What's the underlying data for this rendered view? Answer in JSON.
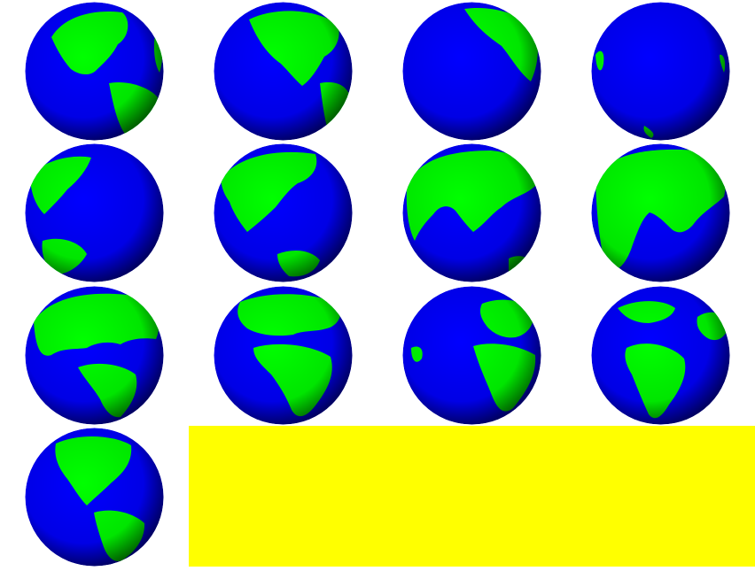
{
  "globes": [
    {
      "view": "americas-north"
    },
    {
      "view": "north-america-pacific"
    },
    {
      "view": "pacific-alaska"
    },
    {
      "view": "central-pacific"
    },
    {
      "view": "western-pacific"
    },
    {
      "view": "east-asia-australia"
    },
    {
      "view": "asia-indian-ocean"
    },
    {
      "view": "asia-africa"
    },
    {
      "view": "europe-africa"
    },
    {
      "view": "africa-atlantic"
    },
    {
      "view": "atlantic-south-america"
    },
    {
      "view": "south-america-atlantic"
    },
    {
      "view": "americas"
    }
  ],
  "colors": {
    "ocean": "#0000ff",
    "land": "#00ff00",
    "background": "#ffffff",
    "panel": "#ffff00"
  }
}
